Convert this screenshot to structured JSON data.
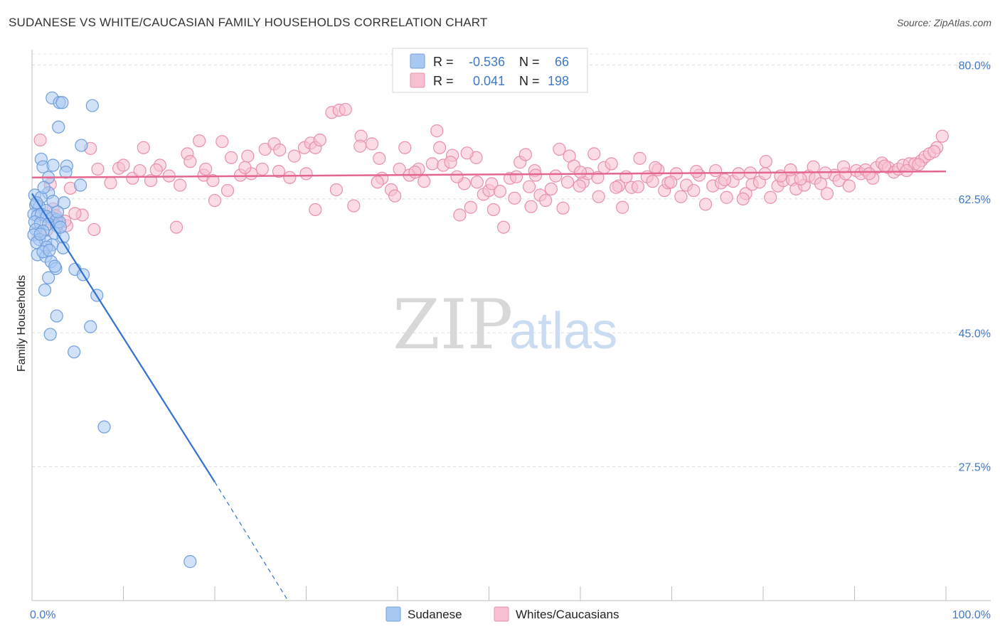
{
  "title": "SUDANESE VS WHITE/CAUCASIAN FAMILY HOUSEHOLDS CORRELATION CHART",
  "source": "Source: ZipAtlas.com",
  "watermark": {
    "part1": "ZIP",
    "part2": "atlas"
  },
  "legend": {
    "r_label": "R =",
    "n_label": "N =",
    "rows": [
      {
        "r": "-0.536",
        "n": "66",
        "color": "#a9c9f2",
        "border": "#6f9fdc"
      },
      {
        "r": "0.041",
        "n": "198",
        "color": "#f7bfd0",
        "border": "#e890ac"
      }
    ]
  },
  "bottom_legend": [
    "Sudanese",
    "Whites/Caucasians"
  ],
  "chart_data": {
    "type": "scatter",
    "title": "SUDANESE VS WHITE/CAUCASIAN FAMILY HOUSEHOLDS CORRELATION CHART",
    "xlabel": "",
    "ylabel": "Family Households",
    "xlim": [
      0,
      100
    ],
    "ylim": [
      10,
      82
    ],
    "x_tick_labels": [
      "0.0%",
      "100.0%"
    ],
    "y_ticks": [
      27.5,
      45.0,
      62.5,
      80.0
    ],
    "y_tick_labels": [
      "27.5%",
      "45.0%",
      "62.5%",
      "80.0%"
    ],
    "grid": "horizontal dashed",
    "legend_position": "top-center",
    "series": [
      {
        "name": "Sudanese",
        "color": "#6f9fdc",
        "fill": "#a9c9f2",
        "trend": {
          "x0": 0,
          "y0": 63.2,
          "x1": 20,
          "y1": 25.5,
          "dash_to_x": 28,
          "dash_to_y": 10
        },
        "points": [
          [
            2.2,
            75.7
          ],
          [
            3.0,
            75.1
          ],
          [
            3.3,
            75.1
          ],
          [
            6.6,
            74.7
          ],
          [
            2.9,
            71.9
          ],
          [
            5.4,
            69.5
          ],
          [
            1.0,
            67.7
          ],
          [
            1.2,
            66.7
          ],
          [
            3.8,
            66.8
          ],
          [
            2.3,
            66.9
          ],
          [
            3.7,
            66.0
          ],
          [
            1.8,
            65.3
          ],
          [
            5.3,
            64.3
          ],
          [
            1.8,
            63.3
          ],
          [
            0.3,
            63.0
          ],
          [
            1.0,
            62.7
          ],
          [
            2.3,
            62.2
          ],
          [
            3.5,
            62.0
          ],
          [
            0.4,
            61.7
          ],
          [
            0.8,
            61.5
          ],
          [
            1.5,
            61.0
          ],
          [
            0.2,
            60.5
          ],
          [
            0.6,
            60.3
          ],
          [
            1.0,
            60.5
          ],
          [
            1.6,
            60.2
          ],
          [
            2.2,
            60.0
          ],
          [
            2.7,
            59.8
          ],
          [
            0.3,
            59.5
          ],
          [
            0.9,
            59.3
          ],
          [
            1.8,
            59.2
          ],
          [
            2.7,
            59.0
          ],
          [
            3.0,
            59.5
          ],
          [
            0.4,
            58.5
          ],
          [
            1.2,
            58.3
          ],
          [
            2.5,
            58.0
          ],
          [
            3.4,
            57.5
          ],
          [
            0.2,
            57.8
          ],
          [
            0.8,
            57.2
          ],
          [
            1.5,
            57.0
          ],
          [
            0.5,
            56.8
          ],
          [
            2.2,
            56.5
          ],
          [
            1.6,
            56.2
          ],
          [
            3.4,
            56.1
          ],
          [
            0.6,
            55.2
          ],
          [
            1.5,
            55.0
          ],
          [
            2.1,
            54.3
          ],
          [
            1.2,
            55.6
          ],
          [
            2.6,
            53.4
          ],
          [
            2.5,
            53.7
          ],
          [
            4.7,
            53.3
          ],
          [
            5.6,
            52.6
          ],
          [
            1.8,
            52.2
          ],
          [
            1.4,
            50.6
          ],
          [
            7.1,
            49.9
          ],
          [
            2.7,
            47.2
          ],
          [
            6.4,
            45.8
          ],
          [
            2.0,
            44.8
          ],
          [
            4.6,
            42.5
          ],
          [
            7.9,
            32.7
          ],
          [
            17.3,
            15.1
          ],
          [
            0.5,
            62.0
          ],
          [
            1.3,
            64.0
          ],
          [
            2.8,
            60.8
          ],
          [
            0.9,
            57.9
          ],
          [
            3.1,
            58.8
          ],
          [
            1.9,
            55.8
          ]
        ]
      },
      {
        "name": "Whites/Caucasians",
        "color": "#e890ac",
        "fill": "#f7bfd0",
        "trend": {
          "x0": 0,
          "y0": 65.3,
          "x1": 100,
          "y1": 66.1
        },
        "points": [
          [
            0.9,
            70.2
          ],
          [
            6.4,
            69.1
          ],
          [
            4.2,
            63.9
          ],
          [
            2.3,
            61.2
          ],
          [
            3.8,
            59.0
          ],
          [
            5.5,
            60.4
          ],
          [
            6.8,
            58.5
          ],
          [
            9.5,
            66.5
          ],
          [
            10.0,
            66.9
          ],
          [
            11.0,
            65.2
          ],
          [
            12.2,
            69.2
          ],
          [
            13.0,
            64.9
          ],
          [
            14.0,
            66.9
          ],
          [
            15.0,
            65.5
          ],
          [
            15.8,
            58.8
          ],
          [
            17.0,
            68.4
          ],
          [
            17.3,
            67.4
          ],
          [
            18.3,
            70.1
          ],
          [
            18.8,
            65.6
          ],
          [
            19.8,
            64.9
          ],
          [
            20.8,
            70.0
          ],
          [
            20.0,
            62.3
          ],
          [
            21.4,
            63.6
          ],
          [
            22.8,
            65.6
          ],
          [
            23.6,
            68.1
          ],
          [
            24.0,
            65.8
          ],
          [
            25.5,
            69.0
          ],
          [
            26.5,
            69.7
          ],
          [
            27.1,
            68.9
          ],
          [
            28.2,
            65.3
          ],
          [
            28.7,
            68.1
          ],
          [
            29.8,
            69.2
          ],
          [
            30.5,
            69.8
          ],
          [
            31.0,
            69.2
          ],
          [
            31.5,
            70.2
          ],
          [
            31.0,
            61.1
          ],
          [
            32.8,
            73.8
          ],
          [
            33.6,
            74.1
          ],
          [
            34.3,
            74.2
          ],
          [
            35.2,
            61.6
          ],
          [
            36.0,
            70.7
          ],
          [
            37.2,
            69.7
          ],
          [
            38.0,
            67.8
          ],
          [
            38.3,
            65.2
          ],
          [
            39.3,
            63.7
          ],
          [
            40.2,
            66.4
          ],
          [
            40.8,
            69.2
          ],
          [
            41.3,
            65.6
          ],
          [
            42.3,
            66.4
          ],
          [
            43.8,
            67.1
          ],
          [
            44.3,
            71.4
          ],
          [
            45.0,
            66.9
          ],
          [
            46.0,
            68.2
          ],
          [
            46.8,
            60.4
          ],
          [
            47.3,
            64.5
          ],
          [
            48.0,
            61.4
          ],
          [
            48.7,
            64.7
          ],
          [
            49.4,
            63.1
          ],
          [
            50.0,
            63.6
          ],
          [
            50.5,
            61.1
          ],
          [
            51.2,
            63.5
          ],
          [
            51.6,
            58.8
          ],
          [
            52.3,
            65.2
          ],
          [
            53.4,
            67.3
          ],
          [
            54.0,
            68.3
          ],
          [
            55.0,
            66.2
          ],
          [
            55.6,
            63.0
          ],
          [
            56.2,
            62.3
          ],
          [
            57.3,
            65.5
          ],
          [
            58.1,
            61.3
          ],
          [
            58.8,
            68.1
          ],
          [
            59.3,
            66.8
          ],
          [
            60.3,
            64.7
          ],
          [
            60.8,
            65.8
          ],
          [
            61.5,
            68.4
          ],
          [
            62.6,
            66.6
          ],
          [
            63.4,
            67.1
          ],
          [
            64.2,
            64.2
          ],
          [
            64.6,
            61.4
          ],
          [
            65.6,
            64.0
          ],
          [
            66.5,
            67.8
          ],
          [
            67.3,
            65.4
          ],
          [
            67.9,
            64.8
          ],
          [
            68.5,
            66.3
          ],
          [
            69.2,
            63.6
          ],
          [
            69.6,
            64.6
          ],
          [
            70.5,
            65.8
          ],
          [
            71.0,
            62.8
          ],
          [
            71.6,
            64.3
          ],
          [
            72.4,
            63.6
          ],
          [
            73.0,
            65.6
          ],
          [
            73.7,
            61.8
          ],
          [
            74.5,
            64.2
          ],
          [
            75.4,
            64.6
          ],
          [
            76.0,
            62.7
          ],
          [
            76.7,
            64.8
          ],
          [
            77.3,
            65.8
          ],
          [
            78.1,
            63.2
          ],
          [
            78.8,
            64.4
          ],
          [
            79.6,
            64.7
          ],
          [
            80.2,
            65.8
          ],
          [
            80.8,
            62.7
          ],
          [
            81.6,
            64.2
          ],
          [
            82.2,
            64.9
          ],
          [
            83.2,
            65.0
          ],
          [
            83.6,
            63.8
          ],
          [
            84.5,
            64.3
          ],
          [
            85.0,
            65.5
          ],
          [
            85.7,
            65.2
          ],
          [
            86.3,
            64.5
          ],
          [
            87.0,
            63.2
          ],
          [
            87.8,
            65.6
          ],
          [
            88.3,
            64.9
          ],
          [
            89.0,
            65.8
          ],
          [
            89.4,
            64.2
          ],
          [
            90.2,
            66.2
          ],
          [
            90.7,
            65.8
          ],
          [
            91.2,
            66.3
          ],
          [
            92.0,
            65.2
          ],
          [
            92.4,
            66.6
          ],
          [
            93.0,
            67.2
          ],
          [
            93.7,
            66.6
          ],
          [
            94.3,
            66.0
          ],
          [
            94.8,
            66.4
          ],
          [
            95.3,
            66.9
          ],
          [
            96.0,
            67.1
          ],
          [
            96.6,
            67.1
          ],
          [
            97.3,
            67.5
          ],
          [
            97.7,
            68.0
          ],
          [
            98.2,
            68.4
          ],
          [
            99.0,
            69.2
          ],
          [
            99.6,
            70.7
          ],
          [
            85.5,
            66.7
          ],
          [
            80.3,
            67.4
          ],
          [
            74.8,
            66.2
          ],
          [
            68.2,
            66.6
          ],
          [
            65.0,
            65.4
          ],
          [
            60.0,
            66.0
          ],
          [
            56.8,
            63.8
          ],
          [
            53.0,
            65.4
          ],
          [
            50.3,
            64.5
          ],
          [
            48.6,
            67.9
          ],
          [
            44.6,
            69.2
          ],
          [
            42.9,
            64.8
          ],
          [
            37.8,
            64.7
          ],
          [
            33.3,
            63.7
          ],
          [
            30.0,
            65.8
          ],
          [
            27.0,
            66.1
          ],
          [
            25.2,
            66.4
          ],
          [
            23.3,
            66.6
          ],
          [
            21.8,
            67.9
          ],
          [
            19.0,
            66.4
          ],
          [
            16.2,
            64.3
          ],
          [
            13.6,
            66.3
          ],
          [
            11.8,
            66.2
          ],
          [
            8.6,
            64.6
          ],
          [
            7.2,
            66.4
          ],
          [
            4.7,
            60.6
          ],
          [
            3.6,
            59.6
          ],
          [
            2.6,
            60.3
          ],
          [
            1.6,
            58.4
          ],
          [
            2.0,
            64.4
          ],
          [
            35.9,
            69.4
          ],
          [
            39.7,
            62.9
          ],
          [
            41.9,
            66.0
          ],
          [
            45.8,
            67.3
          ],
          [
            47.6,
            68.5
          ],
          [
            52.8,
            62.6
          ],
          [
            54.4,
            64.1
          ],
          [
            58.6,
            64.7
          ],
          [
            61.9,
            65.3
          ],
          [
            63.9,
            64.0
          ],
          [
            66.3,
            64.1
          ],
          [
            69.9,
            64.7
          ],
          [
            72.7,
            66.1
          ],
          [
            75.8,
            65.0
          ],
          [
            78.6,
            65.9
          ],
          [
            81.9,
            65.5
          ],
          [
            84.1,
            65.1
          ],
          [
            86.8,
            65.9
          ],
          [
            88.8,
            66.7
          ],
          [
            91.6,
            65.8
          ],
          [
            93.3,
            66.8
          ],
          [
            95.7,
            66.2
          ],
          [
            97.0,
            67.0
          ],
          [
            98.7,
            68.7
          ],
          [
            57.7,
            69.0
          ],
          [
            54.6,
            61.5
          ],
          [
            59.9,
            64.2
          ],
          [
            62.0,
            62.8
          ],
          [
            55.1,
            65.6
          ],
          [
            46.5,
            65.4
          ],
          [
            77.8,
            62.5
          ],
          [
            83.0,
            66.3
          ]
        ]
      }
    ]
  }
}
